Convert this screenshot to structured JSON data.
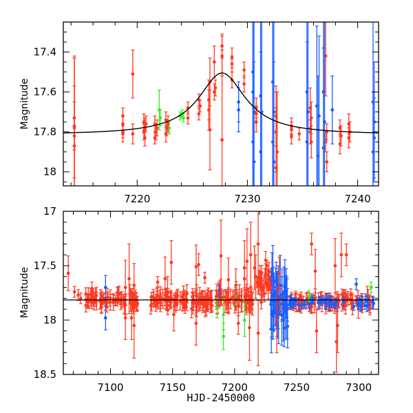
{
  "chart_data": [
    {
      "type": "scatter",
      "panel": "top",
      "title": "",
      "xlabel": "",
      "ylabel": "Magnitude",
      "xlim": [
        7213.3,
        7241.9
      ],
      "ylim": [
        18.07,
        17.25
      ],
      "y_inverted": true,
      "xticks": [
        7220,
        7230,
        7240
      ],
      "xtick_labels": [
        "7220",
        "7230",
        "7240"
      ],
      "yticks": [
        17.4,
        17.6,
        17.8,
        18
      ],
      "ytick_labels": [
        "17.4",
        "17.6",
        "17.8",
        "18"
      ],
      "grid": false,
      "model_curve": {
        "name": "microlensing fit",
        "color": "#000000",
        "baseline": 17.815,
        "peak_mag": 17.505,
        "peak_time": 7227.7,
        "width_days": 2.6
      },
      "series": [
        {
          "name": "red",
          "color": "#ff3a22",
          "points": [
            [
              7214.3,
              17.73,
              0.3
            ],
            [
              7214.3,
              17.78,
              0.35
            ],
            [
              7214.3,
              17.82,
              0.4
            ],
            [
              7214.3,
              17.87,
              0.3
            ],
            [
              7214.3,
              17.77,
              0.12
            ],
            [
              7218.7,
              17.72,
              0.04
            ],
            [
              7218.7,
              17.76,
              0.04
            ],
            [
              7218.7,
              17.8,
              0.03
            ],
            [
              7218.7,
              17.81,
              0.04
            ],
            [
              7219.6,
              17.51,
              0.12
            ],
            [
              7219.6,
              17.81,
              0.05
            ],
            [
              7220.6,
              17.75,
              0.04
            ],
            [
              7220.7,
              17.78,
              0.05
            ],
            [
              7220.6,
              17.8,
              0.04
            ],
            [
              7220.8,
              17.76,
              0.04
            ],
            [
              7220.7,
              17.83,
              0.04
            ],
            [
              7221.6,
              17.76,
              0.04
            ],
            [
              7221.7,
              17.8,
              0.04
            ],
            [
              7221.6,
              17.83,
              0.03
            ],
            [
              7221.8,
              17.78,
              0.04
            ],
            [
              7222.6,
              17.74,
              0.04
            ],
            [
              7222.7,
              17.78,
              0.04
            ],
            [
              7222.6,
              17.81,
              0.04
            ],
            [
              7222.8,
              17.76,
              0.04
            ],
            [
              7224.6,
              17.68,
              0.03
            ],
            [
              7224.6,
              17.73,
              0.03
            ],
            [
              7225.6,
              17.64,
              0.03
            ],
            [
              7225.7,
              17.67,
              0.03
            ],
            [
              7225.6,
              17.71,
              0.03
            ],
            [
              7226.5,
              17.64,
              0.1
            ],
            [
              7226.6,
              17.55,
              0.12
            ],
            [
              7226.5,
              17.69,
              0.1
            ],
            [
              7226.6,
              17.79,
              0.2
            ],
            [
              7227.0,
              17.45,
              0.08
            ],
            [
              7227.1,
              17.58,
              0.04
            ],
            [
              7227.0,
              17.6,
              0.04
            ],
            [
              7227.7,
              17.37,
              0.06
            ],
            [
              7227.7,
              17.42,
              0.1
            ],
            [
              7227.7,
              17.84,
              0.45
            ],
            [
              7228.6,
              17.43,
              0.05
            ],
            [
              7228.6,
              17.46,
              0.04
            ],
            [
              7228.6,
              17.54,
              0.04
            ],
            [
              7229.7,
              17.49,
              0.04
            ],
            [
              7229.7,
              17.56,
              0.04
            ],
            [
              7230.8,
              17.71,
              0.04
            ],
            [
              7230.8,
              17.75,
              0.05
            ],
            [
              7230.8,
              17.68,
              0.05
            ],
            [
              7232.6,
              17.72,
              0.15
            ],
            [
              7232.6,
              17.8,
              0.2
            ],
            [
              7232.7,
              17.9,
              0.3
            ],
            [
              7232.6,
              17.98,
              0.3
            ],
            [
              7234.0,
              17.77,
              0.04
            ],
            [
              7234.0,
              17.79,
              0.04
            ],
            [
              7234.0,
              17.82,
              0.04
            ],
            [
              7234.7,
              17.81,
              0.03
            ],
            [
              7235.7,
              17.68,
              0.1
            ],
            [
              7235.8,
              17.73,
              0.08
            ],
            [
              7235.7,
              17.8,
              0.06
            ],
            [
              7235.8,
              17.85,
              0.08
            ],
            [
              7237.1,
              17.42,
              0.2
            ],
            [
              7237.2,
              17.8,
              0.04
            ],
            [
              7237.1,
              17.85,
              0.05
            ],
            [
              7237.2,
              17.95,
              0.05
            ],
            [
              7238.4,
              17.78,
              0.04
            ],
            [
              7238.5,
              17.82,
              0.05
            ],
            [
              7238.4,
              17.86,
              0.05
            ],
            [
              7239.2,
              17.76,
              0.05
            ],
            [
              7239.3,
              17.8,
              0.05
            ],
            [
              7239.2,
              17.83,
              0.05
            ]
          ]
        },
        {
          "name": "green",
          "color": "#33ee22",
          "points": [
            [
              7222.0,
              17.69,
              0.1
            ],
            [
              7222.1,
              17.73,
              0.04
            ],
            [
              7222.9,
              17.78,
              0.03
            ],
            [
              7224.1,
              17.71,
              0.02
            ],
            [
              7224.2,
              17.73,
              0.02
            ],
            [
              7223.9,
              17.72,
              0.02
            ]
          ]
        },
        {
          "name": "blue",
          "color": "#1a5eff",
          "points": [
            [
              7229.2,
              17.65,
              0.1
            ],
            [
              7229.2,
              17.69,
              0.11
            ],
            [
              7230.5,
              17.5,
              0.6
            ],
            [
              7230.5,
              17.6,
              0.6
            ],
            [
              7230.6,
              17.7,
              0.5
            ],
            [
              7230.5,
              17.85,
              0.6
            ],
            [
              7230.6,
              17.95,
              0.5
            ],
            [
              7231.2,
              17.62,
              0.5
            ],
            [
              7231.3,
              17.7,
              0.45
            ],
            [
              7231.2,
              17.9,
              0.5
            ],
            [
              7232.3,
              17.55,
              0.6
            ],
            [
              7232.4,
              17.7,
              0.6
            ],
            [
              7232.3,
              17.85,
              0.6
            ],
            [
              7232.4,
              17.95,
              0.5
            ],
            [
              7235.4,
              17.6,
              0.5
            ],
            [
              7235.5,
              17.7,
              0.5
            ],
            [
              7235.4,
              17.85,
              0.5
            ],
            [
              7236.3,
              17.67,
              0.4
            ],
            [
              7236.5,
              17.72,
              0.4
            ],
            [
              7236.4,
              17.92,
              0.4
            ],
            [
              7236.9,
              17.6,
              0.5
            ],
            [
              7237.0,
              17.75,
              0.5
            ],
            [
              7236.9,
              17.88,
              0.5
            ],
            [
              7237.7,
              17.69,
              0.17
            ],
            [
              7241.4,
              17.65,
              0.5
            ],
            [
              7241.5,
              17.75,
              0.3
            ],
            [
              7241.5,
              17.83,
              0.2
            ],
            [
              7241.4,
              17.9,
              0.3
            ]
          ]
        }
      ]
    },
    {
      "type": "scatter",
      "panel": "bottom",
      "title": "",
      "xlabel": "HJD-2450000",
      "ylabel": "Magnitude",
      "xlim": [
        7062,
        7316
      ],
      "ylim": [
        18.5,
        17
      ],
      "y_inverted": true,
      "xticks": [
        7100,
        7150,
        7200,
        7250,
        7300
      ],
      "xtick_labels": [
        "7100",
        "7150",
        "7200",
        "7250",
        "7300"
      ],
      "yticks": [
        17,
        17.5,
        18,
        18.5
      ],
      "ytick_labels": [
        "17",
        "17.5",
        "18",
        "18.5"
      ],
      "grid": false,
      "baseline_line": {
        "value": 17.815,
        "color": "#000000"
      },
      "segments": [
        {
          "series": "red",
          "x_range": [
            7080,
            7122
          ],
          "center": 17.82,
          "scatter": 0.05,
          "err": 0.06,
          "n": 70
        },
        {
          "series": "red",
          "x_range": [
            7129,
            7162
          ],
          "center": 17.82,
          "scatter": 0.05,
          "err": 0.06,
          "n": 60
        },
        {
          "series": "red",
          "x_range": [
            7165,
            7182
          ],
          "center": 17.82,
          "scatter": 0.05,
          "err": 0.07,
          "n": 35
        },
        {
          "series": "red",
          "x_range": [
            7185,
            7215
          ],
          "center": 17.81,
          "scatter": 0.06,
          "err": 0.08,
          "n": 55
        },
        {
          "series": "red",
          "x_range": [
            7218,
            7230
          ],
          "center": 17.65,
          "scatter": 0.1,
          "err": 0.06,
          "n": 30
        },
        {
          "series": "red",
          "x_range": [
            7234,
            7300
          ],
          "center": 17.83,
          "scatter": 0.05,
          "err": 0.06,
          "n": 90
        },
        {
          "series": "red",
          "x_range": [
            7302,
            7312
          ],
          "center": 17.83,
          "scatter": 0.05,
          "err": 0.06,
          "n": 12
        },
        {
          "series": "blue",
          "x_range": [
            7229,
            7243
          ],
          "center": 17.8,
          "scatter": 0.2,
          "err": 0.2,
          "n": 40
        },
        {
          "series": "blue",
          "x_range": [
            7243,
            7312
          ],
          "center": 17.84,
          "scatter": 0.03,
          "err": 0.04,
          "n": 50
        }
      ],
      "series": [
        {
          "name": "red",
          "color": "#ff3a22",
          "points": [
            [
              7066,
              17.57,
              0.16
            ],
            [
              7071,
              17.74,
              0.05
            ],
            [
              7074,
              17.77,
              0.05
            ],
            [
              7076,
              17.8,
              0.05
            ],
            [
              7085,
              17.71,
              0.06
            ],
            [
              7088,
              17.76,
              0.05
            ],
            [
              7112,
              17.7,
              0.25
            ],
            [
              7112,
              17.98,
              0.2
            ],
            [
              7115,
              17.62,
              0.32
            ],
            [
              7117,
              17.98,
              0.2
            ],
            [
              7119,
              18.05,
              0.3
            ],
            [
              7119,
              17.68,
              0.2
            ],
            [
              7138,
              17.65,
              0.05
            ],
            [
              7144,
              17.62,
              0.2
            ],
            [
              7146,
              17.75,
              0.15
            ],
            [
              7149,
              17.47,
              0.2
            ],
            [
              7151,
              17.95,
              0.15
            ],
            [
              7169,
              17.51,
              0.2
            ],
            [
              7171,
              17.49,
              0.1
            ],
            [
              7176,
              17.61,
              0.05
            ],
            [
              7169,
              18.03,
              0.2
            ],
            [
              7189,
              17.41,
              0.33
            ],
            [
              7195,
              17.63,
              0.2
            ],
            [
              7201,
              17.68,
              0.15
            ],
            [
              7203,
              18.03,
              0.1
            ],
            [
              7208,
              17.62,
              0.1
            ],
            [
              7208,
              17.52,
              0.25
            ],
            [
              7210,
              17.46,
              0.3
            ],
            [
              7212,
              18.07,
              0.3
            ],
            [
              7213,
              17.4,
              0.3
            ],
            [
              7216,
              17.52,
              0.2
            ],
            [
              7217,
              17.6,
              0.2
            ],
            [
              7219,
              18.12,
              0.3
            ],
            [
              7219,
              17.3,
              0.35
            ],
            [
              7225,
              17.45,
              0.08
            ],
            [
              7227,
              17.58,
              0.05
            ],
            [
              7229,
              17.7,
              0.05
            ],
            [
              7234,
              18.0,
              0.3
            ],
            [
              7236,
              17.57,
              0.15
            ],
            [
              7262,
              17.3,
              0.1
            ],
            [
              7265,
              17.55,
              0.2
            ],
            [
              7281,
              17.5,
              0.25
            ],
            [
              7286,
              17.4,
              0.2
            ],
            [
              7290,
              17.4,
              0.1
            ],
            [
              7283,
              18.05,
              0.25
            ],
            [
              7282,
              18.2,
              0.28
            ],
            [
              7266,
              18.1,
              0.2
            ]
          ]
        },
        {
          "name": "green",
          "color": "#33ee22",
          "points": [
            [
              7186,
              17.89,
              0.09
            ],
            [
              7191,
              17.95,
              0.14
            ],
            [
              7191,
              18.15,
              0.12
            ],
            [
              7201,
              17.78,
              0.08
            ],
            [
              7208,
              18.0,
              0.15
            ],
            [
              7260,
              17.78,
              0.05
            ],
            [
              7310,
              17.7,
              0.05
            ]
          ]
        },
        {
          "name": "blue",
          "color": "#1a5eff",
          "points": [
            [
              7096,
              17.7,
              0.11
            ],
            [
              7096,
              17.98,
              0.11
            ],
            [
              7188,
              17.73,
              0.06
            ],
            [
              7298,
              17.67,
              0.05
            ]
          ]
        }
      ]
    }
  ]
}
